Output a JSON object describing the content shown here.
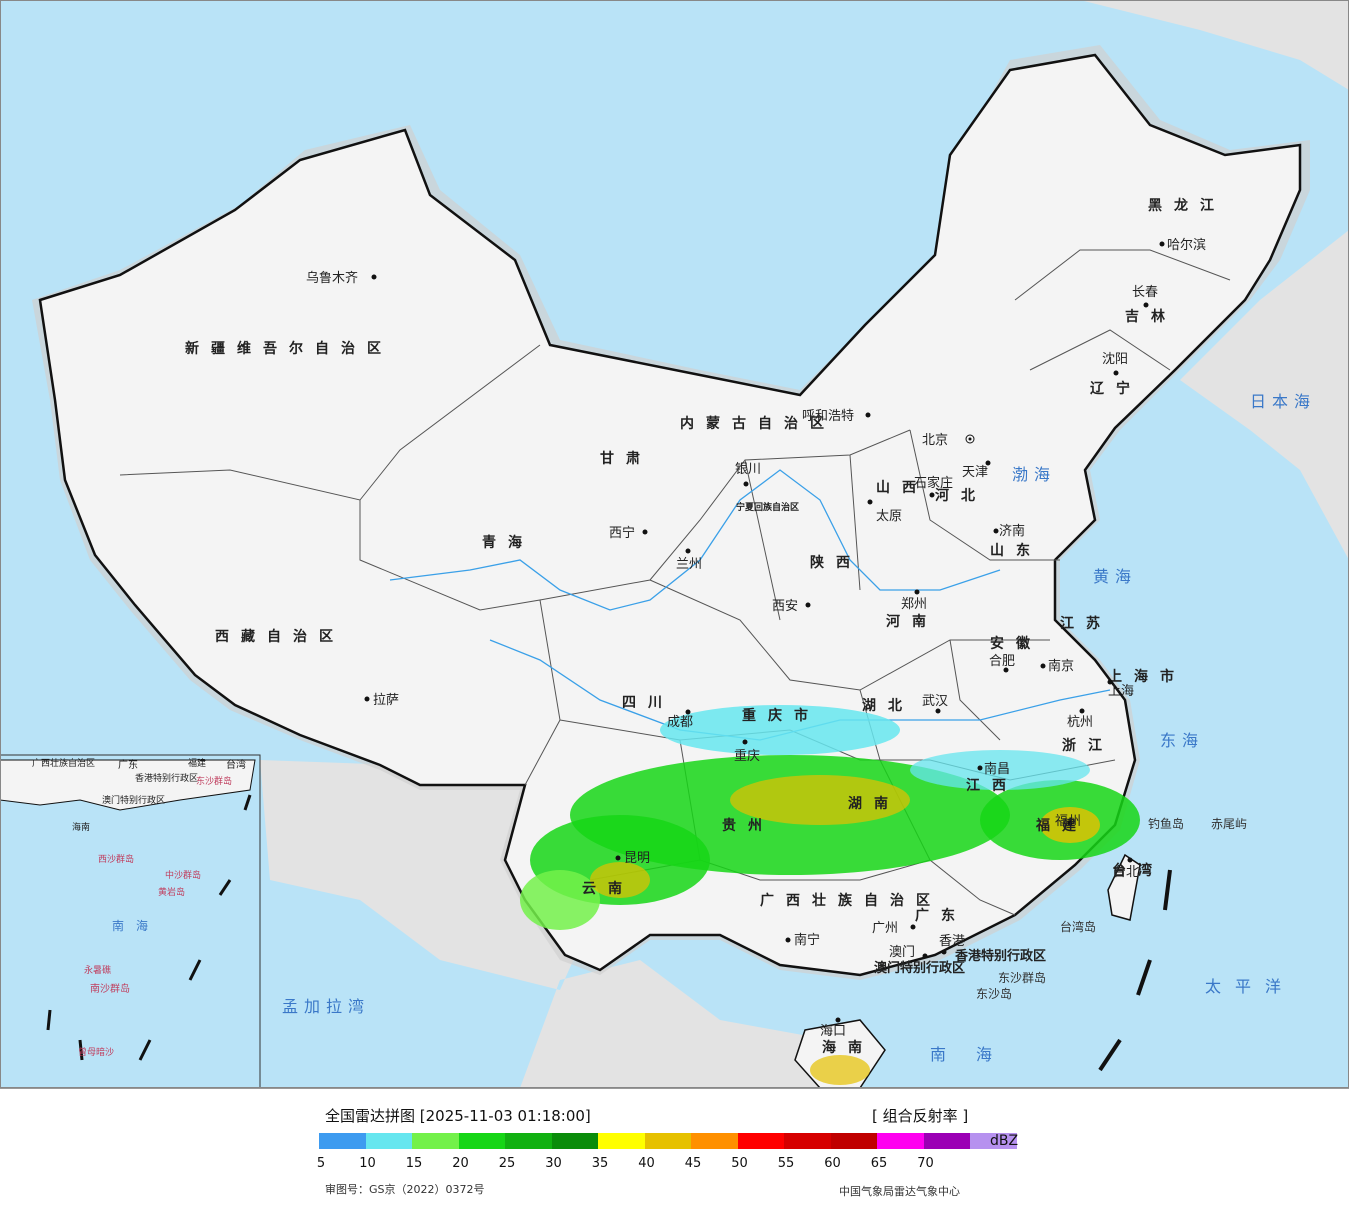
{
  "map": {
    "provinces": [
      {
        "name": "新疆维吾尔自治区"
      },
      {
        "name": "西藏自治区"
      },
      {
        "name": "青海"
      },
      {
        "name": "甘肃"
      },
      {
        "name": "内蒙古自治区"
      },
      {
        "name": "四川"
      },
      {
        "name": "黑龙江"
      },
      {
        "name": "吉林"
      },
      {
        "name": "辽宁"
      },
      {
        "name": "河北"
      },
      {
        "name": "山西"
      },
      {
        "name": "陕西"
      },
      {
        "name": "河南"
      },
      {
        "name": "山东"
      },
      {
        "name": "江苏"
      },
      {
        "name": "安徽"
      },
      {
        "name": "湖北"
      },
      {
        "name": "湖南"
      },
      {
        "name": "江西"
      },
      {
        "name": "浙江"
      },
      {
        "name": "福建"
      },
      {
        "name": "贵州"
      },
      {
        "name": "云南"
      },
      {
        "name": "广东"
      },
      {
        "name": "广西壮族自治区"
      },
      {
        "name": "海南"
      },
      {
        "name": "台湾"
      },
      {
        "name": "重庆市"
      },
      {
        "name": "上海市"
      },
      {
        "name": "宁夏回族自治区"
      }
    ],
    "cities": [
      {
        "name": "乌鲁木齐"
      },
      {
        "name": "拉萨"
      },
      {
        "name": "西宁"
      },
      {
        "name": "兰州"
      },
      {
        "name": "银川"
      },
      {
        "name": "呼和浩特"
      },
      {
        "name": "北京"
      },
      {
        "name": "天津"
      },
      {
        "name": "石家庄"
      },
      {
        "name": "太原"
      },
      {
        "name": "济南"
      },
      {
        "name": "西安"
      },
      {
        "name": "郑州"
      },
      {
        "name": "合肥"
      },
      {
        "name": "南京"
      },
      {
        "name": "上海"
      },
      {
        "name": "杭州"
      },
      {
        "name": "武汉"
      },
      {
        "name": "成都"
      },
      {
        "name": "重庆"
      },
      {
        "name": "南昌"
      },
      {
        "name": "福州"
      },
      {
        "name": "台北"
      },
      {
        "name": "昆明"
      },
      {
        "name": "南宁"
      },
      {
        "name": "广州"
      },
      {
        "name": "澳门"
      },
      {
        "name": "香港"
      },
      {
        "name": "海口"
      },
      {
        "name": "哈尔滨"
      },
      {
        "name": "长春"
      },
      {
        "name": "沈阳"
      }
    ],
    "seas": [
      {
        "name": "日本海"
      },
      {
        "name": "渤海"
      },
      {
        "name": "黄海"
      },
      {
        "name": "东海"
      },
      {
        "name": "太平洋"
      },
      {
        "name": "南海"
      },
      {
        "name": "孟加拉湾"
      }
    ],
    "islands": [
      {
        "name": "钓鱼岛"
      },
      {
        "name": "赤尾屿"
      },
      {
        "name": "台湾岛"
      },
      {
        "name": "东沙群岛"
      },
      {
        "name": "东沙岛"
      },
      {
        "name": "香港特别行政区"
      },
      {
        "name": "澳门特别行政区"
      }
    ],
    "inset": {
      "labels": [
        "广西壮族自治区",
        "广东",
        "福建",
        "台湾",
        "香港特别行政区",
        "澳门特别行政区",
        "东沙群岛",
        "海南",
        "西沙群岛",
        "中沙群岛",
        "黄岩岛",
        "南海",
        "永暑礁",
        "南沙群岛",
        "曾母暗沙"
      ]
    },
    "colors": {
      "ocean": "#b9e3f7",
      "land_china": "#f4f4f4",
      "land_foreign": "#e3e3e3",
      "border": "#111111",
      "river": "#3aa0e8"
    }
  },
  "legend": {
    "title": "全国雷达拼图 [2025-11-03 01:18:00]",
    "product": "[ 组合反射率 ]",
    "unit": "dBZ",
    "ticks": [
      "5",
      "10",
      "15",
      "20",
      "25",
      "30",
      "35",
      "40",
      "45",
      "50",
      "55",
      "60",
      "65",
      "70"
    ],
    "colors": [
      "#3d9bf0",
      "#66e6ef",
      "#73f14a",
      "#16d616",
      "#11b111",
      "#0a8c0a",
      "#ffff00",
      "#e6c100",
      "#ff9000",
      "#ff0000",
      "#d60000",
      "#c00000",
      "#ff00f0",
      "#9b00b5",
      "#b691ef"
    ],
    "review_no": "审图号：GS京（2022）0372号",
    "agency": "中国气象局雷达气象中心"
  }
}
